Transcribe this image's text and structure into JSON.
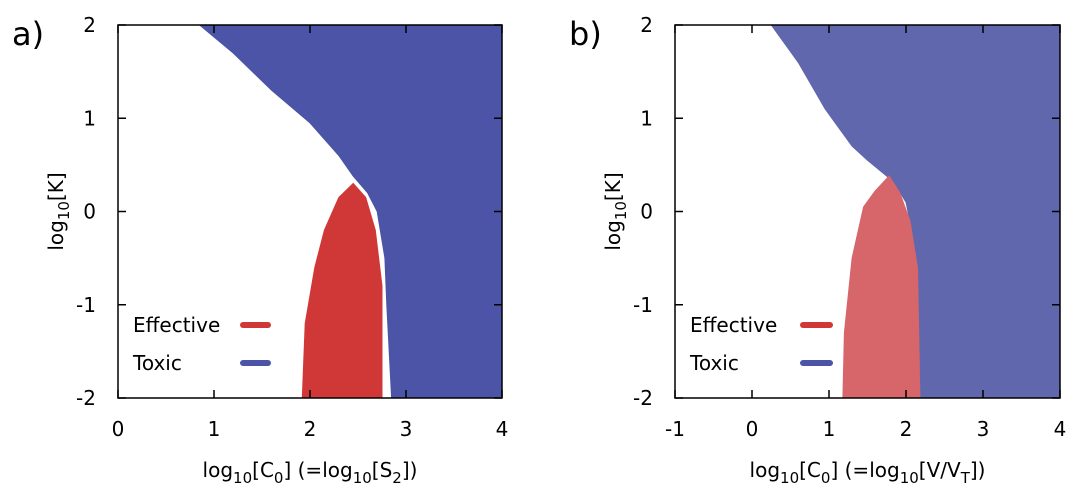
{
  "chart_data": [
    {
      "panel": "a)",
      "type": "area",
      "xlabel": "log10[C 0]  (=log10[S 2])",
      "ylabel": "log10[K]",
      "xlim": [
        0,
        4
      ],
      "ylim": [
        -2,
        2
      ],
      "xticks": [
        "0",
        "1",
        "2",
        "3",
        "4"
      ],
      "yticks": [
        "-2",
        "-1",
        "0",
        "1",
        "2"
      ],
      "legend": [
        {
          "label": "Effective",
          "color": "#d03838"
        },
        {
          "label": "Toxic",
          "color": "#4b54a6"
        }
      ],
      "legend_placement": "bottom-left",
      "series": [
        {
          "name": "Toxic",
          "color": "#4b54a6",
          "boundary": [
            [
              0.85,
              2.0
            ],
            [
              1.2,
              1.7
            ],
            [
              1.6,
              1.3
            ],
            [
              2.0,
              0.95
            ],
            [
              2.3,
              0.6
            ],
            [
              2.45,
              0.38
            ],
            [
              2.6,
              0.2
            ],
            [
              2.7,
              0.0
            ],
            [
              2.78,
              -0.5
            ],
            [
              2.8,
              -1.0
            ],
            [
              2.85,
              -2.0
            ]
          ]
        },
        {
          "name": "Effective",
          "color": "#d03838",
          "boundary": [
            [
              1.92,
              -2.0
            ],
            [
              1.95,
              -1.2
            ],
            [
              2.05,
              -0.6
            ],
            [
              2.15,
              -0.2
            ],
            [
              2.3,
              0.15
            ],
            [
              2.45,
              0.3
            ],
            [
              2.58,
              0.15
            ],
            [
              2.68,
              -0.2
            ],
            [
              2.75,
              -0.8
            ],
            [
              2.75,
              -2.0
            ]
          ]
        }
      ]
    },
    {
      "panel": "b)",
      "type": "area",
      "xlabel": "log10[C 0]  (=log10[V/V T])",
      "ylabel": "log10[K]",
      "xlim": [
        -1,
        4
      ],
      "ylim": [
        -2,
        2
      ],
      "xticks": [
        "-1",
        "0",
        "1",
        "2",
        "3",
        "4"
      ],
      "yticks": [
        "-2",
        "-1",
        "0",
        "1",
        "2"
      ],
      "legend": [
        {
          "label": "Effective",
          "color": "#d03838"
        },
        {
          "label": "Toxic",
          "color": "#4b54a6"
        }
      ],
      "legend_placement": "bottom-left",
      "series": [
        {
          "name": "Toxic",
          "color": "#6167ad",
          "boundary": [
            [
              0.25,
              2.0
            ],
            [
              0.6,
              1.6
            ],
            [
              0.95,
              1.1
            ],
            [
              1.3,
              0.7
            ],
            [
              1.5,
              0.55
            ],
            [
              1.75,
              0.38
            ],
            [
              1.85,
              0.3
            ],
            [
              2.0,
              0.1
            ],
            [
              2.1,
              -0.3
            ],
            [
              2.15,
              -0.9
            ],
            [
              2.18,
              -2.0
            ]
          ]
        },
        {
          "name": "Effective",
          "color": "#d6666a",
          "boundary": [
            [
              1.18,
              -2.0
            ],
            [
              1.2,
              -1.3
            ],
            [
              1.3,
              -0.5
            ],
            [
              1.45,
              0.05
            ],
            [
              1.6,
              0.22
            ],
            [
              1.78,
              0.38
            ],
            [
              1.92,
              0.2
            ],
            [
              2.05,
              -0.1
            ],
            [
              2.15,
              -0.6
            ],
            [
              2.18,
              -2.0
            ]
          ]
        }
      ]
    }
  ]
}
